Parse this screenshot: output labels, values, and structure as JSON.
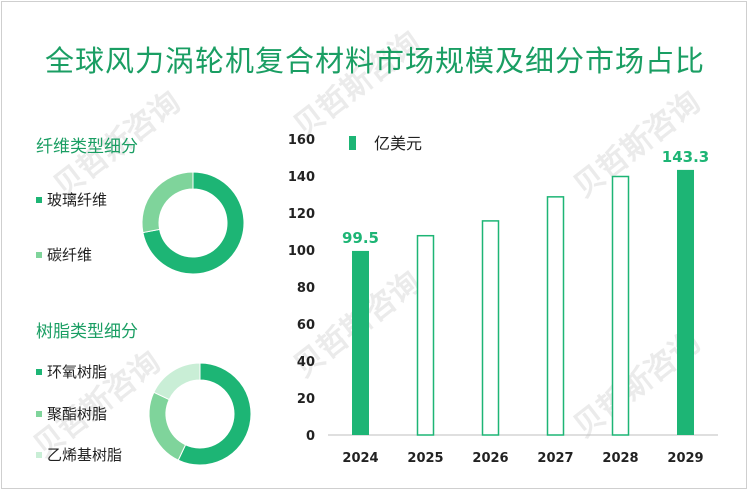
{
  "title": "全球风力涡轮机复合材料市场规模及细分市场占比",
  "fiber_section": {
    "title": "纤维类型细分",
    "items": [
      {
        "label": "玻璃纤维",
        "color": "#1db575"
      },
      {
        "label": "碳纤维",
        "color": "#7fd49b"
      }
    ]
  },
  "resin_section": {
    "title": "树脂类型细分",
    "items": [
      {
        "label": "环氧树脂",
        "color": "#1db575"
      },
      {
        "label": "聚酯树脂",
        "color": "#7fd49b"
      },
      {
        "label": "乙烯基树脂",
        "color": "#c9eed6"
      }
    ]
  },
  "chart_data": [
    {
      "type": "pie",
      "style": "donut",
      "categories": [
        "玻璃纤维",
        "碳纤维"
      ],
      "values": [
        72,
        28
      ],
      "colors": [
        "#1db575",
        "#7fd49b"
      ]
    },
    {
      "type": "pie",
      "style": "donut",
      "categories": [
        "环氧树脂",
        "聚酯树脂",
        "乙烯基树脂"
      ],
      "values": [
        57,
        25,
        18
      ],
      "colors": [
        "#1db575",
        "#7fd49b",
        "#c9eed6"
      ]
    },
    {
      "type": "bar",
      "categories": [
        "2024",
        "2025",
        "2026",
        "2027",
        "2028",
        "2029"
      ],
      "values": [
        99.5,
        108,
        116,
        129,
        140,
        143.3
      ],
      "data_labels": [
        "99.5",
        "",
        "",
        "",
        "",
        "143.3"
      ],
      "filled": [
        true,
        false,
        false,
        false,
        false,
        true
      ],
      "legend": "亿美元",
      "legend_position": "top-left",
      "ylim": [
        0,
        160
      ],
      "yticks": [
        "0",
        "20",
        "40",
        "60",
        "80",
        "100",
        "120",
        "140",
        "160"
      ],
      "color": "#1db575"
    }
  ]
}
